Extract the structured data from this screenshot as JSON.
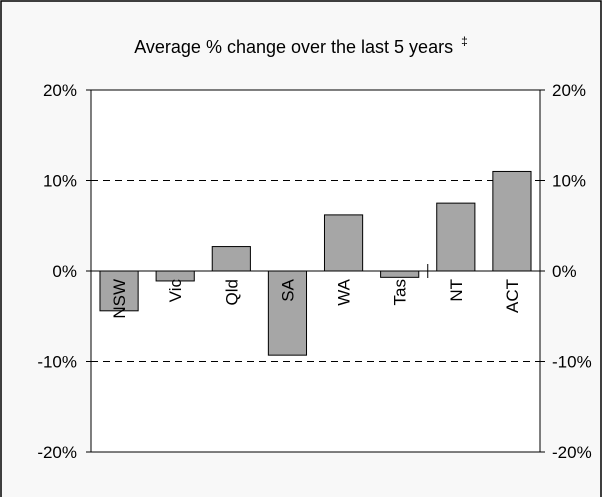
{
  "chart_data": {
    "type": "bar",
    "title": "Average % change over the last 5 years",
    "title_mark": "‡",
    "categories": [
      "NSW",
      "Vic",
      "Qld",
      "SA",
      "WA",
      "Tas",
      "NT",
      "ACT"
    ],
    "values": [
      -4.4,
      -1.1,
      2.7,
      -9.3,
      6.2,
      -0.7,
      7.5,
      11.0
    ],
    "ylim": [
      -20,
      20
    ],
    "yticks": [
      20,
      10,
      0,
      -10,
      -20
    ],
    "ytick_labels": [
      "20%",
      "10%",
      "0%",
      "-10%",
      "-20%"
    ],
    "dashed_gridlines_at": [
      10,
      -10
    ],
    "bar_color": "#a6a6a6",
    "y_axis_labels_both_sides": true,
    "xlabel": "",
    "ylabel": ""
  }
}
